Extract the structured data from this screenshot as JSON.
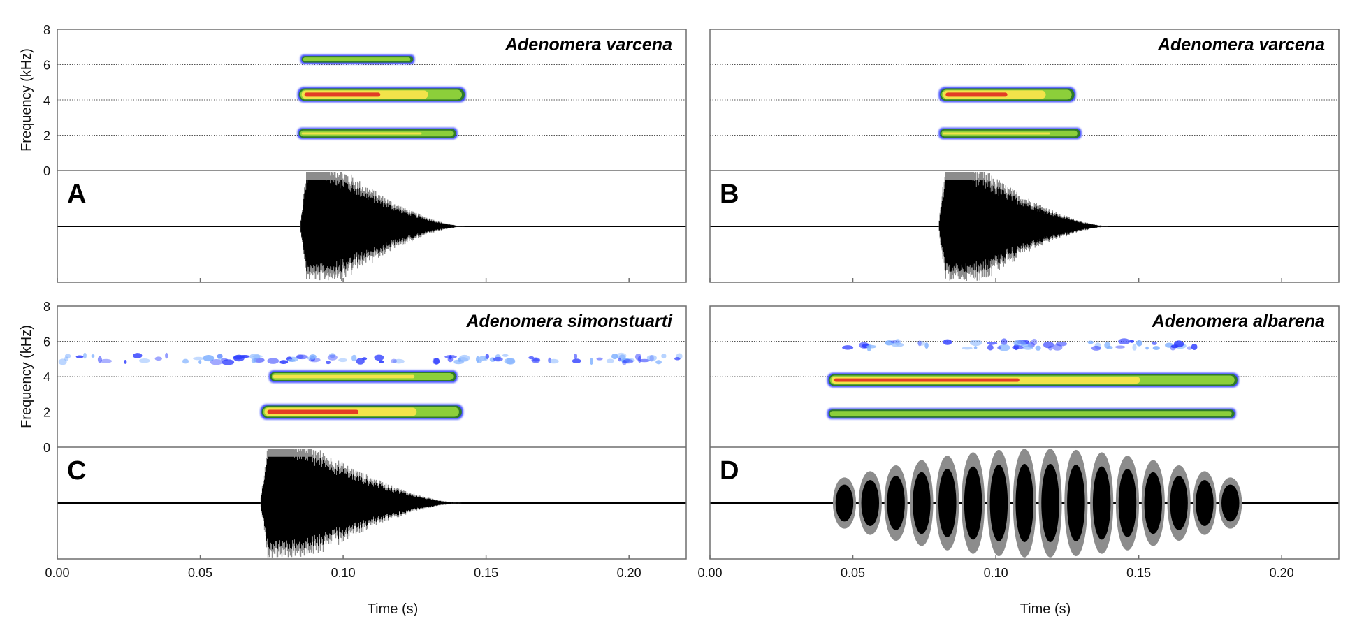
{
  "chart_data": [
    {
      "panel": "A",
      "type": "spectrogram+waveform",
      "species": "Adenomera varcena",
      "ylabel": "Frequency (kHz)",
      "yticks": [
        "0",
        "2",
        "4",
        "6",
        "8"
      ],
      "ylim": [
        0,
        8
      ],
      "xlim": [
        0,
        0.22
      ],
      "xticks": [
        0.0,
        0.05,
        0.1,
        0.15,
        0.2
      ],
      "xtick_labels": [],
      "xlabel": "",
      "note_start_s": 0.085,
      "note_end_s": 0.143,
      "harmonics": [
        {
          "freq_khz": 2.1,
          "start_s": 0.084,
          "end_s": 0.14,
          "intensity": 0.45
        },
        {
          "freq_khz": 4.3,
          "start_s": 0.084,
          "end_s": 0.143,
          "intensity": 1.0
        },
        {
          "freq_khz": 6.3,
          "start_s": 0.085,
          "end_s": 0.125,
          "intensity": 0.15
        }
      ],
      "waveform_pulses": []
    },
    {
      "panel": "B",
      "type": "spectrogram+waveform",
      "species": "Adenomera varcena",
      "ylabel": "",
      "yticks": [],
      "ylim": [
        0,
        8
      ],
      "xlim": [
        0,
        0.22
      ],
      "xticks": [
        0.0,
        0.05,
        0.1,
        0.15,
        0.2
      ],
      "xtick_labels": [],
      "xlabel": "",
      "note_start_s": 0.08,
      "note_end_s": 0.14,
      "harmonics": [
        {
          "freq_khz": 2.1,
          "start_s": 0.08,
          "end_s": 0.13,
          "intensity": 0.45
        },
        {
          "freq_khz": 4.3,
          "start_s": 0.08,
          "end_s": 0.128,
          "intensity": 1.0
        }
      ],
      "waveform_pulses": []
    },
    {
      "panel": "C",
      "type": "spectrogram+waveform",
      "species": "Adenomera simonstuarti",
      "ylabel": "Frequency (kHz)",
      "yticks": [
        "0",
        "2",
        "4",
        "6",
        "8"
      ],
      "ylim": [
        0,
        8
      ],
      "xlim": [
        0,
        0.22
      ],
      "xticks": [
        0.0,
        0.05,
        0.1,
        0.15,
        0.2
      ],
      "xtick_labels": [
        "0.00",
        "0.05",
        "0.10",
        "0.15",
        "0.20"
      ],
      "xlabel": "Time (s)",
      "note_start_s": 0.071,
      "note_end_s": 0.142,
      "harmonics": [
        {
          "freq_khz": 2.0,
          "start_s": 0.071,
          "end_s": 0.142,
          "intensity": 1.0
        },
        {
          "freq_khz": 4.0,
          "start_s": 0.074,
          "end_s": 0.14,
          "intensity": 0.6
        },
        {
          "freq_khz": 5.0,
          "start_s": 0.0,
          "end_s": 0.22,
          "intensity": 0.05
        }
      ],
      "waveform_pulses": []
    },
    {
      "panel": "D",
      "type": "spectrogram+waveform",
      "species": "Adenomera albarena",
      "ylabel": "",
      "yticks": [],
      "ylim": [
        0,
        8
      ],
      "xlim": [
        0,
        0.22
      ],
      "xticks": [
        0.0,
        0.05,
        0.1,
        0.15,
        0.2
      ],
      "xtick_labels": [
        "0.00",
        "0.05",
        "0.10",
        "0.15",
        "0.20"
      ],
      "xlabel": "Time (s)",
      "note_start_s": 0.042,
      "note_end_s": 0.185,
      "harmonics": [
        {
          "freq_khz": 1.9,
          "start_s": 0.041,
          "end_s": 0.184,
          "intensity": 0.35
        },
        {
          "freq_khz": 3.8,
          "start_s": 0.041,
          "end_s": 0.185,
          "intensity": 0.9
        },
        {
          "freq_khz": 5.8,
          "start_s": 0.045,
          "end_s": 0.17,
          "intensity": 0.05
        }
      ],
      "waveform_pulses": [
        0.043,
        0.052,
        0.061,
        0.07,
        0.079,
        0.088,
        0.097,
        0.106,
        0.115,
        0.124,
        0.133,
        0.142,
        0.151,
        0.16,
        0.169,
        0.178
      ]
    }
  ],
  "colors": {
    "frame": "#6e6e6e",
    "grid": "#555555",
    "waveform_dark": "#000000",
    "waveform_light": "#8c8c8c",
    "spectrogram_scale": [
      "#1a2cff",
      "#2f7a2a",
      "#8ccf3a",
      "#f2e34a",
      "#f08a2a",
      "#e01e1e"
    ]
  }
}
